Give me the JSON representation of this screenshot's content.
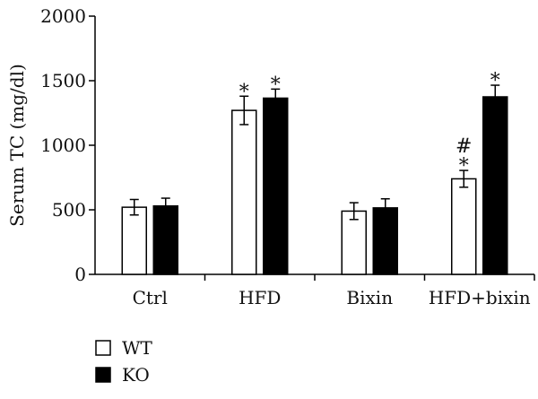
{
  "chart_data": {
    "type": "bar",
    "title": "",
    "xlabel": "",
    "ylabel": "Serum TC (mg/dl)",
    "ylim": [
      0,
      2000
    ],
    "yticks": [
      0,
      500,
      1000,
      1500,
      2000
    ],
    "grid": false,
    "legend_position": "bottom-left",
    "categories": [
      "Ctrl",
      "HFD",
      "Bixin",
      "HFD+bixin"
    ],
    "series": [
      {
        "name": "WT",
        "fill": "#ffffff",
        "values": [
          520,
          1270,
          490,
          740
        ],
        "errors": [
          60,
          110,
          65,
          65
        ],
        "annotations": [
          "",
          "*",
          "",
          "#\n*"
        ]
      },
      {
        "name": "KO",
        "fill": "#000000",
        "values": [
          530,
          1365,
          515,
          1375
        ],
        "errors": [
          60,
          70,
          70,
          90
        ],
        "annotations": [
          "",
          "*",
          "",
          "*"
        ]
      }
    ]
  }
}
